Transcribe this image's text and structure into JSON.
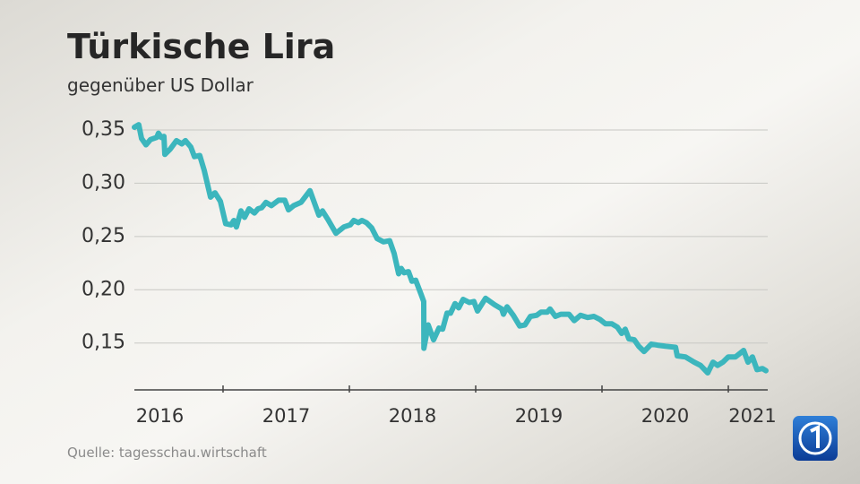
{
  "chart_data": {
    "type": "line",
    "title": "Türkische Lira",
    "subtitle": "gegenüber US Dollar",
    "source": "Quelle: tagesschau.wirtschaft",
    "x": [
      2016.298,
      2016.333,
      2016.355,
      2016.39,
      2016.426,
      2016.475,
      2016.489,
      2016.511,
      2016.532,
      2016.539,
      2016.582,
      2016.631,
      2016.674,
      2016.702,
      2016.745,
      2016.773,
      2016.816,
      2016.851,
      2016.901,
      2016.936,
      2016.979,
      2017.021,
      2017.064,
      2017.085,
      2017.106,
      2017.142,
      2017.17,
      2017.206,
      2017.248,
      2017.277,
      2017.305,
      2017.34,
      2017.383,
      2017.44,
      2017.489,
      2017.518,
      2017.56,
      2017.617,
      2017.688,
      2017.759,
      2017.787,
      2017.83,
      2017.894,
      2017.957,
      2018.007,
      2018.035,
      2018.071,
      2018.099,
      2018.135,
      2018.177,
      2018.22,
      2018.27,
      2018.319,
      2018.355,
      2018.39,
      2018.411,
      2018.433,
      2018.468,
      2018.496,
      2018.525,
      2018.567,
      2018.589,
      2018.59,
      2018.624,
      2018.667,
      2018.709,
      2018.738,
      2018.773,
      2018.801,
      2018.837,
      2018.865,
      2018.901,
      2018.95,
      2018.986,
      2019.014,
      2019.078,
      2019.149,
      2019.206,
      2019.22,
      2019.248,
      2019.298,
      2019.348,
      2019.39,
      2019.433,
      2019.482,
      2019.518,
      2019.567,
      2019.589,
      2019.631,
      2019.674,
      2019.738,
      2019.78,
      2019.83,
      2019.887,
      2019.936,
      2019.986,
      2020.028,
      2020.078,
      2020.121,
      2020.156,
      2020.184,
      2020.213,
      2020.255,
      2020.291,
      2020.333,
      2020.39,
      2020.44,
      2020.504,
      2020.582,
      2020.596,
      2020.66,
      2020.73,
      2020.78,
      2020.837,
      2020.879,
      2020.915,
      2020.957,
      2021.0,
      2021.057,
      2021.121,
      2021.156,
      2021.191,
      2021.227,
      2021.27,
      2021.298
    ],
    "series": [
      {
        "color": "#3cb6bd",
        "values": [
          0.3525,
          0.355,
          0.342,
          0.336,
          0.341,
          0.343,
          0.347,
          0.343,
          0.344,
          0.327,
          0.332,
          0.34,
          0.337,
          0.34,
          0.334,
          0.325,
          0.326,
          0.312,
          0.287,
          0.291,
          0.283,
          0.262,
          0.261,
          0.265,
          0.259,
          0.274,
          0.268,
          0.276,
          0.272,
          0.276,
          0.277,
          0.282,
          0.279,
          0.284,
          0.284,
          0.275,
          0.279,
          0.282,
          0.293,
          0.27,
          0.274,
          0.266,
          0.253,
          0.259,
          0.261,
          0.265,
          0.263,
          0.265,
          0.263,
          0.258,
          0.248,
          0.245,
          0.246,
          0.234,
          0.215,
          0.22,
          0.216,
          0.217,
          0.208,
          0.209,
          0.196,
          0.189,
          0.145,
          0.167,
          0.153,
          0.164,
          0.163,
          0.178,
          0.178,
          0.187,
          0.183,
          0.191,
          0.188,
          0.189,
          0.18,
          0.192,
          0.186,
          0.182,
          0.177,
          0.184,
          0.176,
          0.166,
          0.167,
          0.175,
          0.176,
          0.179,
          0.179,
          0.182,
          0.175,
          0.177,
          0.177,
          0.171,
          0.176,
          0.174,
          0.175,
          0.172,
          0.168,
          0.168,
          0.165,
          0.159,
          0.163,
          0.154,
          0.153,
          0.147,
          0.142,
          0.149,
          0.148,
          0.147,
          0.146,
          0.138,
          0.137,
          0.132,
          0.129,
          0.122,
          0.132,
          0.129,
          0.132,
          0.137,
          0.137,
          0.143,
          0.132,
          0.137,
          0.125,
          0.126,
          0.124
        ]
      }
    ],
    "xlim": [
      2016.298,
      2021.312
    ],
    "xticks": [
      2016,
      2017,
      2018,
      2019,
      2020,
      2021
    ],
    "ylim": [
      0.106,
      0.35
    ],
    "yticks": [
      {
        "value": 0.15,
        "label": "0,15"
      },
      {
        "value": 0.2,
        "label": "0,20"
      },
      {
        "value": 0.25,
        "label": "0,25"
      },
      {
        "value": 0.3,
        "label": "0,30"
      },
      {
        "value": 0.35,
        "label": "0,35"
      }
    ],
    "grid": true
  }
}
